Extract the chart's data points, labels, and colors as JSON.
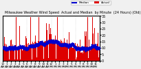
{
  "title": "Milwaukee Weather Wind Speed  Actual and Median  by Minute  (24 Hours) (Old)",
  "title_fontsize": 3.5,
  "bg_color": "#f0f0f0",
  "plot_bg_color": "#ffffff",
  "bar_color": "#dd0000",
  "median_color": "#0000cc",
  "n_points": 1440,
  "y_max": 35,
  "y_ticks": [
    0,
    5,
    10,
    15,
    20,
    25,
    30,
    35
  ],
  "y_tick_fontsize": 3.5,
  "x_tick_fontsize": 3.0,
  "legend_fontsize": 3.0,
  "vline_color": "#aaaaaa",
  "vline_positions": [
    0,
    180,
    360,
    540,
    720,
    900,
    1080,
    1260,
    1440
  ]
}
